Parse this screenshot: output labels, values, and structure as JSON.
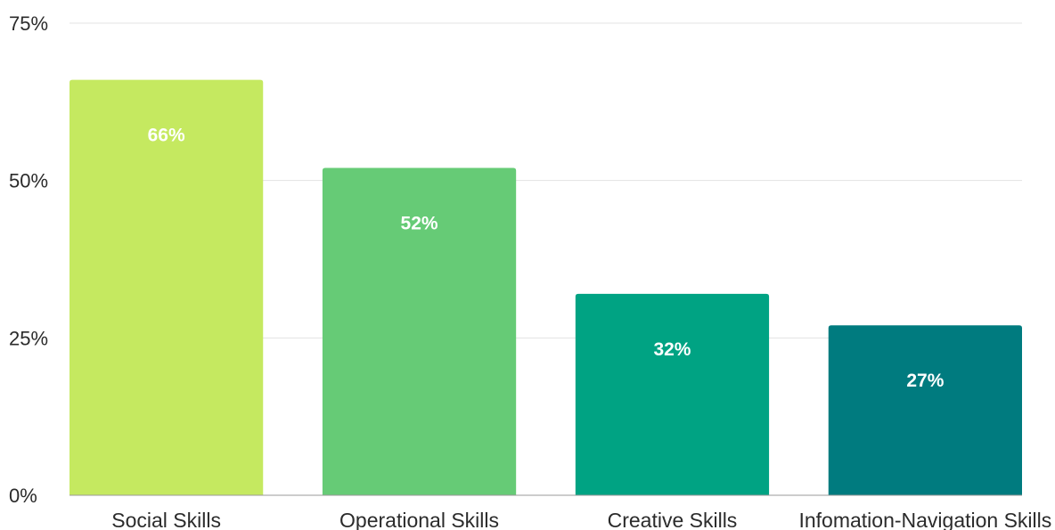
{
  "chart_data": {
    "type": "bar",
    "title": "",
    "xlabel": "",
    "ylabel": "",
    "categories": [
      "Social Skills",
      "Operational Skills",
      "Creative Skills",
      "Infomation-Navigation Skills"
    ],
    "values": [
      66,
      52,
      32,
      27
    ],
    "value_labels": [
      "66%",
      "52%",
      "32%",
      "27%"
    ],
    "colors": [
      "#c5e960",
      "#66cb76",
      "#00a383",
      "#007b7f"
    ],
    "ylim": [
      0,
      75
    ],
    "yticks": [
      0,
      25,
      50,
      75
    ],
    "ytick_labels": [
      "0%",
      "25%",
      "50%",
      "75%"
    ],
    "grid": true,
    "legend": "none"
  }
}
